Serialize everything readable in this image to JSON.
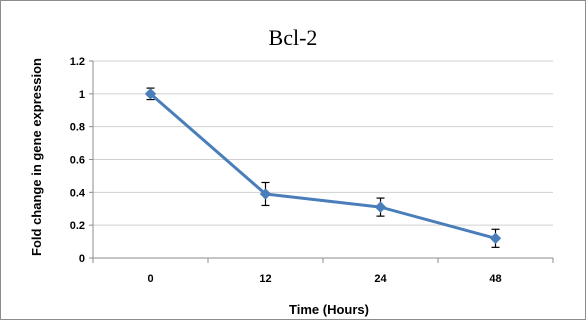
{
  "chart_data": {
    "type": "line",
    "title": "Bcl-2",
    "xlabel": "Time (Hours)",
    "ylabel": "Fold change in gene expression",
    "categories": [
      "0",
      "12",
      "24",
      "48"
    ],
    "series": [
      {
        "values": [
          1.0,
          0.39,
          0.31,
          0.12
        ],
        "errors": [
          0.035,
          0.07,
          0.055,
          0.055
        ],
        "color": "#4a7ebb"
      }
    ],
    "ylim": [
      0,
      1.2
    ],
    "yticks": [
      "0",
      "0.2",
      "0.4",
      "0.6",
      "0.8",
      "1",
      "1.2"
    ],
    "grid": true,
    "legend": "none"
  }
}
